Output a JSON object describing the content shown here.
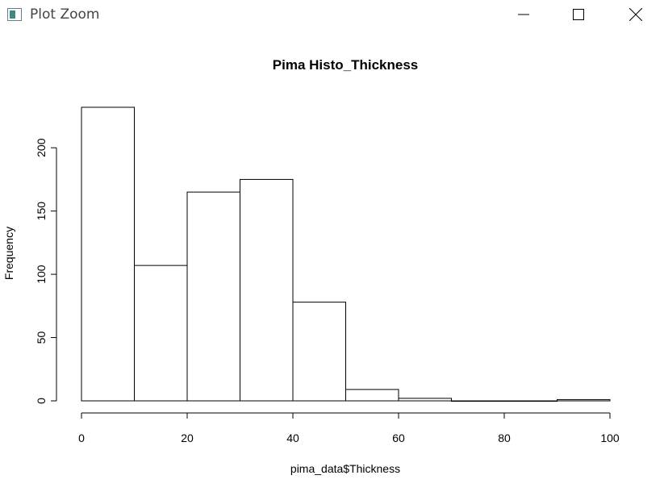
{
  "window": {
    "title": "Plot Zoom",
    "icon": "app-window-icon",
    "controls": [
      "minimize-icon",
      "maximize-icon",
      "close-icon"
    ]
  },
  "chart_data": {
    "type": "bar",
    "title": "Pima Histo_Thickness",
    "xlabel": "pima_data$Thickness",
    "ylabel": "Frequency",
    "bins": [
      [
        0,
        10
      ],
      [
        10,
        20
      ],
      [
        20,
        30
      ],
      [
        30,
        40
      ],
      [
        40,
        50
      ],
      [
        50,
        60
      ],
      [
        60,
        70
      ],
      [
        70,
        80
      ],
      [
        80,
        90
      ],
      [
        90,
        100
      ]
    ],
    "values": [
      232,
      107,
      165,
      175,
      78,
      9,
      2,
      0,
      0,
      1
    ],
    "xlim": [
      0,
      100
    ],
    "ylim": [
      0,
      232
    ],
    "xticks": [
      "0",
      "20",
      "40",
      "60",
      "80",
      "100"
    ],
    "yticks": [
      "0",
      "50",
      "100",
      "150",
      "200"
    ],
    "grid": false,
    "bar_fill": "#ffffff",
    "bar_stroke": "#000000"
  }
}
